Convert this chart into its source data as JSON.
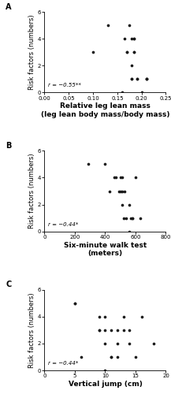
{
  "panel_A": {
    "x": [
      0.1,
      0.13,
      0.16,
      0.165,
      0.17,
      0.17,
      0.175,
      0.18,
      0.18,
      0.18,
      0.18,
      0.185,
      0.185,
      0.185,
      0.185,
      0.19,
      0.19,
      0.2,
      0.21,
      0.21,
      0.21
    ],
    "y": [
      3,
      5,
      0,
      4,
      3,
      3,
      5,
      2,
      1,
      1,
      4,
      3,
      3,
      4,
      4,
      1,
      1,
      0,
      1,
      1,
      1
    ],
    "xlabel1": "Relative leg lean mass",
    "xlabel2": "(leg lean body mass/body mass)",
    "ylabel": "Risk factors (numbers)",
    "label": "A",
    "annotation": "r = −0.55**",
    "xlim": [
      0.0,
      0.25
    ],
    "xticks": [
      0.0,
      0.05,
      0.1,
      0.15,
      0.2,
      0.25
    ],
    "xticklabels": [
      "0.00",
      "0.05",
      "0.10",
      "0.15",
      "0.20",
      "0.25"
    ],
    "ylim": [
      0,
      6
    ],
    "yticks": [
      0,
      2,
      4,
      6
    ]
  },
  "panel_B": {
    "x": [
      290,
      400,
      430,
      460,
      470,
      490,
      500,
      500,
      510,
      510,
      510,
      520,
      530,
      540,
      560,
      560,
      570,
      580,
      580,
      600,
      630
    ],
    "y": [
      5,
      5,
      3,
      4,
      4,
      3,
      3,
      4,
      2,
      3,
      4,
      1,
      3,
      1,
      0,
      2,
      1,
      1,
      1,
      4,
      1
    ],
    "xlabel1": "Six-minute walk test",
    "xlabel2": "(meters)",
    "ylabel": "Risk factors (numbers)",
    "label": "B",
    "annotation": "r = −0.44*",
    "xlim": [
      0,
      800
    ],
    "xticks": [
      0,
      200,
      400,
      600,
      800
    ],
    "xticklabels": [
      "0",
      "200",
      "400",
      "600",
      "800"
    ],
    "ylim": [
      0,
      6
    ],
    "yticks": [
      0,
      2,
      4,
      6
    ]
  },
  "panel_C": {
    "x": [
      5,
      5,
      6,
      9,
      9,
      9,
      10,
      10,
      10,
      10,
      11,
      11,
      11,
      12,
      12,
      12,
      13,
      13,
      14,
      14,
      15,
      16,
      18
    ],
    "y": [
      5,
      5,
      1,
      3,
      4,
      3,
      2,
      3,
      4,
      0,
      1,
      1,
      3,
      2,
      3,
      1,
      3,
      4,
      2,
      3,
      1,
      4,
      2
    ],
    "xlabel1": "Vertical jump (cm)",
    "xlabel2": "",
    "ylabel": "Risk factors (numbers)",
    "label": "C",
    "annotation": "r = −0.44*",
    "xlim": [
      0,
      20
    ],
    "xticks": [
      0,
      5,
      10,
      15,
      20
    ],
    "xticklabels": [
      "0",
      "5",
      "10",
      "15",
      "20"
    ],
    "ylim": [
      0,
      6
    ],
    "yticks": [
      0,
      2,
      4,
      6
    ]
  },
  "dot_color": "#1a1a1a",
  "dot_size": 7,
  "annotation_fontsize": 5.0,
  "label_fontsize": 6.0,
  "xlabel_fontsize": 6.5,
  "tick_fontsize": 5.0,
  "panel_label_fontsize": 7.0
}
